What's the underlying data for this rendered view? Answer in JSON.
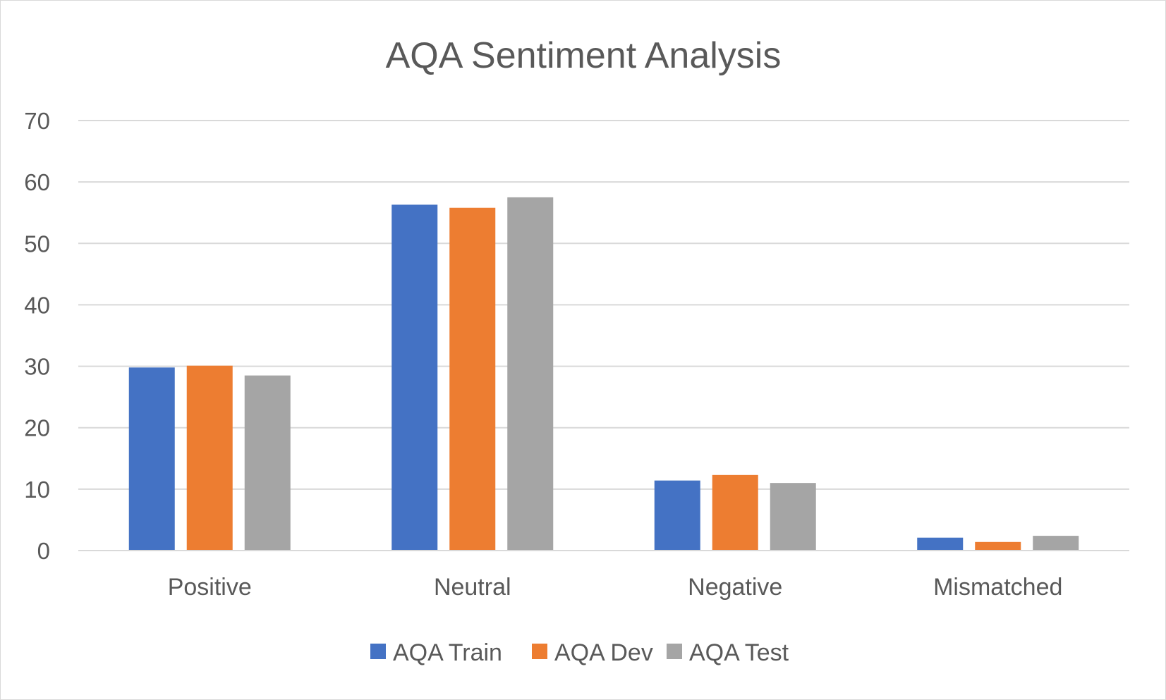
{
  "chart_data": {
    "type": "bar",
    "title": "AQA Sentiment Analysis",
    "xlabel": "",
    "ylabel": "",
    "categories": [
      "Positive",
      "Neutral",
      "Negative",
      "Mismatched"
    ],
    "series": [
      {
        "name": "AQA Train",
        "color": "#4472C4",
        "values": [
          29.8,
          56.3,
          11.4,
          2.1
        ]
      },
      {
        "name": "AQA Dev",
        "color": "#ED7D31",
        "values": [
          30.1,
          55.8,
          12.3,
          1.4
        ]
      },
      {
        "name": "AQA Test",
        "color": "#A5A5A5",
        "values": [
          28.5,
          57.5,
          11.0,
          2.4
        ]
      }
    ],
    "ylim": [
      0,
      70
    ],
    "yticks": [
      "0",
      "10",
      "20",
      "30",
      "40",
      "50",
      "60",
      "70"
    ],
    "grid": true,
    "legend_position": "bottom",
    "colors": {
      "gridline": "#d9d9d9",
      "text": "#595959"
    }
  }
}
